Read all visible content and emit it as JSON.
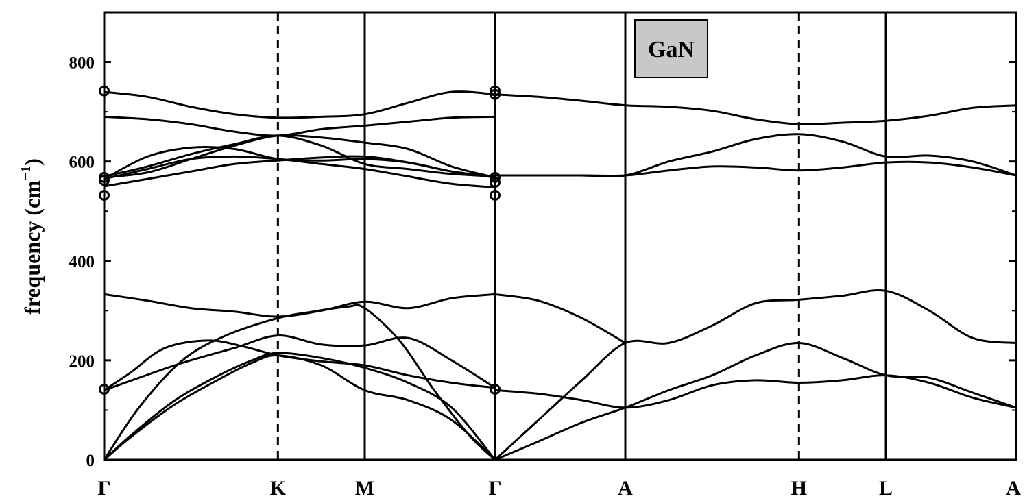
{
  "chart_data": {
    "type": "line",
    "title": "GaN",
    "ylabel_main": "frequency (cm",
    "ylabel_sup": "−1",
    "ylabel_close": ")",
    "ylim": [
      0,
      900
    ],
    "yticks": [
      0,
      200,
      400,
      600,
      800
    ],
    "ytick_labels": [
      "0",
      "200",
      "400",
      "600",
      "800"
    ],
    "x_path": [
      {
        "label": "Γ",
        "pos": 0
      },
      {
        "label": "K",
        "pos": 2.0
      },
      {
        "label": "M",
        "pos": 3.0
      },
      {
        "label": "Γ",
        "pos": 4.5
      },
      {
        "label": "A",
        "pos": 6.0
      },
      {
        "label": "H",
        "pos": 8.0
      },
      {
        "label": "L",
        "pos": 9.0
      },
      {
        "label": "A",
        "pos": 10.5
      }
    ],
    "xlim": [
      0,
      10.5
    ],
    "grid": false,
    "dashed_verticals": [
      2.0,
      8.0
    ],
    "solid_verticals": [
      3.0,
      4.5,
      6.0,
      9.0
    ],
    "series": [
      {
        "x": [
          0,
          0.3,
          0.8,
          1.3,
          1.7,
          2.0,
          2.5,
          3.0,
          3.5,
          4.0,
          4.5
        ],
        "values": [
          0,
          45,
          110,
          160,
          195,
          210,
          190,
          140,
          120,
          80,
          0
        ]
      },
      {
        "x": [
          0,
          0.3,
          0.8,
          1.3,
          1.7,
          2.0,
          2.5,
          3.0,
          3.5,
          4.0,
          4.5
        ],
        "values": [
          0,
          48,
          118,
          168,
          200,
          215,
          205,
          185,
          155,
          105,
          0
        ]
      },
      {
        "x": [
          0,
          0.4,
          0.9,
          1.4,
          2.0,
          2.4,
          2.8,
          3.0,
          3.4,
          3.8,
          4.2,
          4.5
        ],
        "values": [
          0,
          105,
          200,
          250,
          285,
          298,
          308,
          305,
          240,
          140,
          50,
          0
        ]
      },
      {
        "x": [
          0,
          0.4,
          0.9,
          1.5,
          2.0,
          2.5,
          3.0,
          3.5,
          4.0,
          4.5
        ],
        "values": [
          140,
          165,
          195,
          225,
          250,
          232,
          230,
          245,
          200,
          145
        ]
      },
      {
        "x": [
          0,
          0.3,
          0.7,
          1.2,
          1.6,
          2.0,
          2.5,
          3.0,
          3.5,
          4.0,
          4.5
        ],
        "values": [
          140,
          175,
          225,
          240,
          228,
          210,
          198,
          190,
          170,
          155,
          145
        ]
      },
      {
        "x": [
          0,
          0.5,
          1.0,
          1.5,
          2.0,
          2.5,
          3.0,
          3.5,
          4.0,
          4.5
        ],
        "values": [
          333,
          320,
          305,
          298,
          288,
          300,
          318,
          305,
          325,
          333
        ]
      },
      {
        "x": [
          4.5,
          5.0,
          5.5,
          6.0,
          6.5,
          7.0,
          7.5,
          8.0,
          8.5,
          9.0,
          9.5,
          10.0,
          10.5
        ],
        "values": [
          140,
          133,
          120,
          105,
          120,
          150,
          160,
          155,
          160,
          170,
          155,
          125,
          105
        ]
      },
      {
        "x": [
          4.5,
          5.0,
          5.5,
          6.0,
          6.5,
          7.0,
          7.5,
          8.0,
          8.5,
          9.0,
          9.5,
          10.0,
          10.5
        ],
        "values": [
          0,
          37,
          75,
          105,
          140,
          170,
          210,
          235,
          205,
          170,
          165,
          135,
          105
        ]
      },
      {
        "x": [
          4.5,
          5.0,
          5.5,
          6.0,
          6.5,
          7.0,
          7.5,
          8.0,
          8.5,
          9.0,
          9.5,
          10.0,
          10.5
        ],
        "values": [
          0,
          80,
          160,
          235,
          235,
          270,
          315,
          322,
          330,
          340,
          300,
          245,
          235
        ]
      },
      {
        "x": [
          4.5,
          5.0,
          5.5,
          6.0
        ],
        "values": [
          333,
          320,
          285,
          235
        ]
      },
      {
        "x": [
          0,
          0.5,
          1.0,
          1.5,
          2.0,
          2.5,
          3.0,
          3.5,
          4.0,
          4.5
        ],
        "values": [
          550,
          565,
          580,
          595,
          602,
          608,
          610,
          598,
          580,
          570
        ]
      },
      {
        "x": [
          0,
          0.5,
          1.0,
          1.5,
          2.0,
          2.5,
          3.0,
          3.5,
          4.0,
          4.5
        ],
        "values": [
          565,
          585,
          605,
          610,
          605,
          595,
          585,
          570,
          555,
          548
        ]
      },
      {
        "x": [
          0,
          0.5,
          1.0,
          1.5,
          2.0,
          2.5,
          3.0,
          3.5,
          4.0,
          4.5
        ],
        "values": [
          565,
          610,
          628,
          625,
          605,
          602,
          605,
          598,
          580,
          568
        ]
      },
      {
        "x": [
          0,
          0.5,
          1.0,
          1.5,
          2.0,
          2.5,
          3.0,
          3.5,
          4.0,
          4.5
        ],
        "values": [
          570,
          590,
          615,
          635,
          652,
          632,
          595,
          585,
          575,
          570
        ]
      },
      {
        "x": [
          0,
          0.5,
          1.0,
          1.5,
          2.0,
          2.5,
          3.0,
          3.5,
          4.0,
          4.5
        ],
        "values": [
          568,
          578,
          605,
          632,
          652,
          648,
          638,
          625,
          590,
          568
        ]
      },
      {
        "x": [
          0,
          0.5,
          1.0,
          1.5,
          2.0,
          2.5,
          3.0,
          3.5,
          4.0,
          4.5
        ],
        "values": [
          690,
          685,
          675,
          660,
          652,
          665,
          672,
          680,
          688,
          690
        ]
      },
      {
        "x": [
          0,
          0.5,
          1.0,
          1.5,
          2.0,
          2.5,
          3.0,
          3.5,
          4.0,
          4.5
        ],
        "values": [
          740,
          730,
          710,
          695,
          688,
          690,
          695,
          718,
          740,
          735
        ]
      },
      {
        "x": [
          4.5,
          5.0,
          5.5,
          6.0,
          6.5,
          7.0,
          7.5,
          8.0,
          8.5,
          9.0,
          9.5,
          10.0,
          10.5
        ],
        "values": [
          735,
          730,
          722,
          713,
          710,
          702,
          685,
          675,
          678,
          682,
          692,
          708,
          713
        ]
      },
      {
        "x": [
          4.5,
          5.0,
          5.5,
          6.0,
          6.5,
          7.0,
          7.5,
          8.0,
          8.5,
          9.0,
          9.5,
          10.0,
          10.5
        ],
        "values": [
          572,
          572,
          572,
          572,
          582,
          590,
          588,
          582,
          588,
          598,
          598,
          588,
          572
        ]
      },
      {
        "x": [
          4.5,
          5.0,
          5.5,
          6.0,
          6.5,
          7.0,
          7.5,
          8.0,
          8.5,
          9.0,
          9.5,
          10.0,
          10.5
        ],
        "values": [
          572,
          572,
          572,
          572,
          600,
          620,
          645,
          655,
          640,
          610,
          612,
          600,
          572
        ]
      }
    ],
    "markers": [
      {
        "x": 0,
        "values": [
          142,
          532,
          562,
          568,
          742
        ]
      },
      {
        "x": 4.5,
        "values": [
          142,
          532,
          558,
          568,
          735,
          742
        ]
      }
    ]
  }
}
